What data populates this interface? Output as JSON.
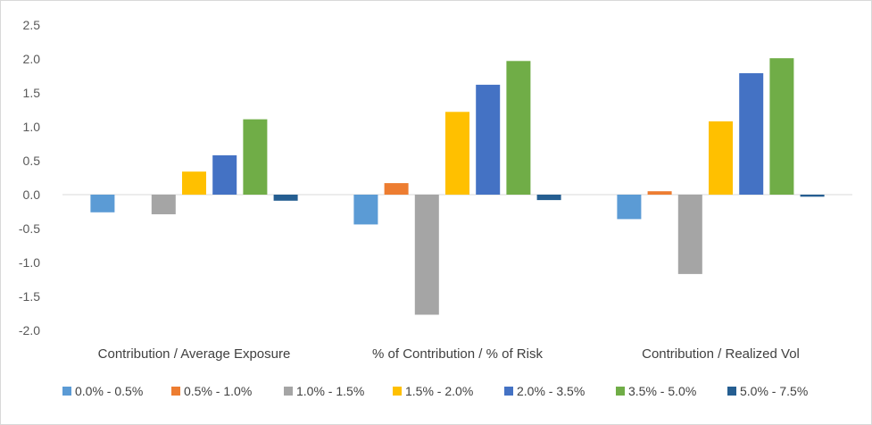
{
  "chart_data": {
    "type": "bar",
    "categories": [
      "Contribution / Average Exposure",
      "% of Contribution / % of Risk",
      "Contribution / Realized Vol"
    ],
    "ylim": [
      -2.0,
      2.5
    ],
    "yticks": [
      "2.5",
      "2.0",
      "1.5",
      "1.0",
      "0.5",
      "0.0",
      "-0.5",
      "-1.0",
      "-1.5",
      "-2.0"
    ],
    "grid": false,
    "legend_position": "bottom",
    "series": [
      {
        "name": "0.0% - 0.5%",
        "color": "#5b9bd5",
        "values": [
          -0.26,
          -0.44,
          -0.36
        ]
      },
      {
        "name": "0.5% - 1.0%",
        "color": "#ed7d31",
        "values": [
          0.0,
          0.17,
          0.05
        ]
      },
      {
        "name": "1.0% - 1.5%",
        "color": "#a5a5a5",
        "values": [
          -0.29,
          -1.77,
          -1.17
        ]
      },
      {
        "name": "1.5% - 2.0%",
        "color": "#ffc000",
        "values": [
          0.34,
          1.22,
          1.08
        ]
      },
      {
        "name": "2.0% - 3.5%",
        "color": "#4472c4",
        "values": [
          0.58,
          1.62,
          1.79
        ]
      },
      {
        "name": "3.5% - 5.0%",
        "color": "#70ad47",
        "values": [
          1.11,
          1.97,
          2.01
        ]
      },
      {
        "name": "5.0% - 7.5%",
        "color": "#255e91",
        "values": [
          -0.09,
          -0.08,
          -0.03
        ]
      }
    ]
  }
}
